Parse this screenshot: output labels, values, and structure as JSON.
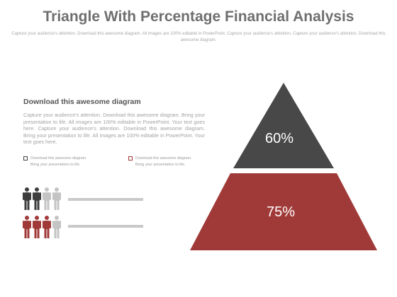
{
  "title": "Triangle With Percentage Financial Analysis",
  "subtitle": "Capture your audience's attention. Download this awesome diagram. All images are 100% editable in PowerPoint. Capture your audience's attention. Capture your audience's attention. Download this awesome diagram.",
  "section": {
    "heading": "Download this awesome diagram",
    "body": "Capture your audience's attention. Download this awesome diagram. Bring your presentation to life. All images are 100% editable in PowerPoint. Your text goes here. Capture your audience's attention. Download this awesome diagram. Bring your presentation to life. All images are 100% editable in PowerPoint. Your text goes here."
  },
  "legend": [
    {
      "text_line1": "Download this awesome diagram.",
      "text_line2": "Bring your presentation to life.",
      "color": "#444444"
    },
    {
      "text_line1": "Download this awesome diagram.",
      "text_line2": "Bring your presentation to life.",
      "color": "#a03a38"
    }
  ],
  "people_rows": [
    {
      "filled": 2,
      "total": 4,
      "color": "#3d3d3d"
    },
    {
      "filled": 3,
      "total": 4,
      "color": "#a03a38"
    }
  ],
  "pyramid": {
    "top": {
      "label": "60%",
      "color": "#484848"
    },
    "bottom": {
      "label": "75%",
      "color": "#a03a38"
    }
  }
}
